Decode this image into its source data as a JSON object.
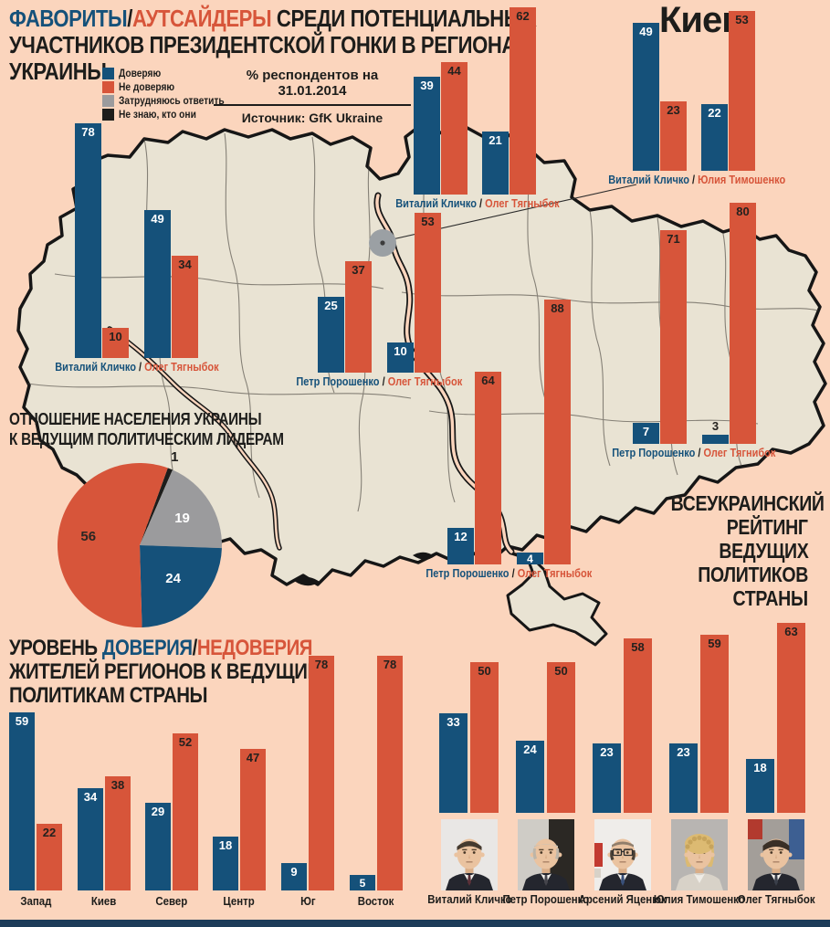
{
  "colors": {
    "trust": "#15517a",
    "distrust": "#d7553a",
    "undecided": "#9b9b9d",
    "unknown": "#1d1d1b",
    "background": "#fbd5bd",
    "map_fill": "#e9e3d3",
    "map_stroke": "#161616",
    "text_dark": "#1d1d1b",
    "bottom_strip": "#1d3c59",
    "kiev_dot": "#9ba0a4"
  },
  "header": {
    "line1_parts": [
      {
        "text": "ФАВОРИТЫ",
        "color": "trust"
      },
      {
        "text": "/",
        "color": "text_dark"
      },
      {
        "text": "АУТСАЙДЕРЫ",
        "color": "distrust"
      },
      {
        "text": " СРЕДИ ПОТЕНЦИАЛЬНЫХ",
        "color": "text_dark"
      }
    ],
    "line2": "УЧАСТНИКОВ ПРЕЗИДЕНТСКОЙ ГОНКИ В РЕГИОНАХ",
    "line3": "УКРАИНЫ"
  },
  "legend": [
    {
      "key": "trust",
      "label": "Доверяю"
    },
    {
      "key": "distrust",
      "label": "Не доверяю"
    },
    {
      "key": "undecided",
      "label": "Затрудняюсь ответить"
    },
    {
      "key": "unknown",
      "label": "Не знаю, кто они"
    }
  ],
  "source": {
    "line1": "% респондентов на 31.01.2014",
    "line2": "Источник: GfK Ukraine"
  },
  "kiev_city_label": "Киев",
  "chart_data": {
    "map_charts": [
      {
        "id": "west",
        "type": "bar",
        "politicians": [
          {
            "name": "Виталий Кличко",
            "trust": 78,
            "distrust": 10
          },
          {
            "name": "Олег Тягныбок",
            "trust": 49,
            "distrust": 34
          }
        ]
      },
      {
        "id": "north",
        "type": "bar",
        "politicians": [
          {
            "name": "Виталий Кличко",
            "trust": 39,
            "distrust": 44
          },
          {
            "name": "Олег Тягныбок",
            "trust": 21,
            "distrust": 62
          }
        ]
      },
      {
        "id": "kiev",
        "type": "bar",
        "politicians": [
          {
            "name": "Виталий Кличко",
            "trust": 49,
            "distrust": 23
          },
          {
            "name": "Юлия Тимошенко",
            "trust": 22,
            "distrust": 53
          }
        ]
      },
      {
        "id": "center",
        "type": "bar",
        "politicians": [
          {
            "name": "Петр Порошенко",
            "trust": 25,
            "distrust": 37
          },
          {
            "name": "Олег Тягныбок",
            "trust": 10,
            "distrust": 53
          }
        ]
      },
      {
        "id": "south",
        "type": "bar",
        "politicians": [
          {
            "name": "Петр Порошенко",
            "trust": 12,
            "distrust": 64
          },
          {
            "name": "Олег Тягныбок",
            "trust": 4,
            "distrust": 88
          }
        ]
      },
      {
        "id": "east",
        "type": "bar",
        "politicians": [
          {
            "name": "Петр Порошенко",
            "trust": 7,
            "distrust": 71
          },
          {
            "name": "Олег Тягнибок",
            "trust": 3,
            "distrust": 80
          }
        ]
      }
    ],
    "pie": {
      "type": "pie",
      "title": [
        "ОТНОШЕНИЕ НАСЕЛЕНИЯ УКРАИНЫ",
        "К ВЕДУЩИМ ПОЛИТИЧЕСКИМ ЛИДЕРАМ"
      ],
      "slices": [
        {
          "value": 1,
          "key": "unknown"
        },
        {
          "value": 19,
          "key": "undecided"
        },
        {
          "value": 24,
          "key": "trust"
        },
        {
          "value": 56,
          "key": "distrust"
        }
      ]
    },
    "regions": {
      "type": "bar",
      "title_line1_parts": [
        {
          "text": "УРОВЕНЬ ",
          "color": "text_dark"
        },
        {
          "text": "ДОВЕРИЯ",
          "color": "trust"
        },
        {
          "text": "/",
          "color": "text_dark"
        },
        {
          "text": "НЕДОВЕРИЯ",
          "color": "distrust"
        }
      ],
      "title_line2": "ЖИТЕЛЕЙ РЕГИОНОВ К ВЕДУЩИМ",
      "title_line3": "ПОЛИТИКАМ СТРАНЫ",
      "categories": [
        "Запад",
        "Киев",
        "Север",
        "Центр",
        "Юг",
        "Восток"
      ],
      "series": [
        {
          "name": "Доверяю",
          "values": [
            59,
            34,
            29,
            18,
            9,
            5
          ]
        },
        {
          "name": "Не доверяю",
          "values": [
            22,
            38,
            52,
            47,
            78,
            78
          ]
        }
      ]
    },
    "rating": {
      "type": "bar",
      "title": [
        "ВСЕУКРАИНСКИЙ",
        "РЕЙТИНГ",
        "ВЕДУЩИХ",
        "ПОЛИТИКОВ",
        "СТРАНЫ"
      ],
      "politicians": [
        {
          "name": "Виталий Кличко",
          "avatar": "klichko",
          "trust": 33,
          "distrust": 50
        },
        {
          "name": "Петр Порошенко",
          "avatar": "poroshenko",
          "trust": 24,
          "distrust": 50
        },
        {
          "name": "Арсений Яценюк",
          "avatar": "yatsenyuk",
          "trust": 23,
          "distrust": 58
        },
        {
          "name": "Юлия Тимошенко",
          "avatar": "tymoshenko",
          "trust": 23,
          "distrust": 59
        },
        {
          "name": "Олег Тягныбок",
          "avatar": "tyahnybok",
          "trust": 18,
          "distrust": 63
        }
      ]
    }
  }
}
